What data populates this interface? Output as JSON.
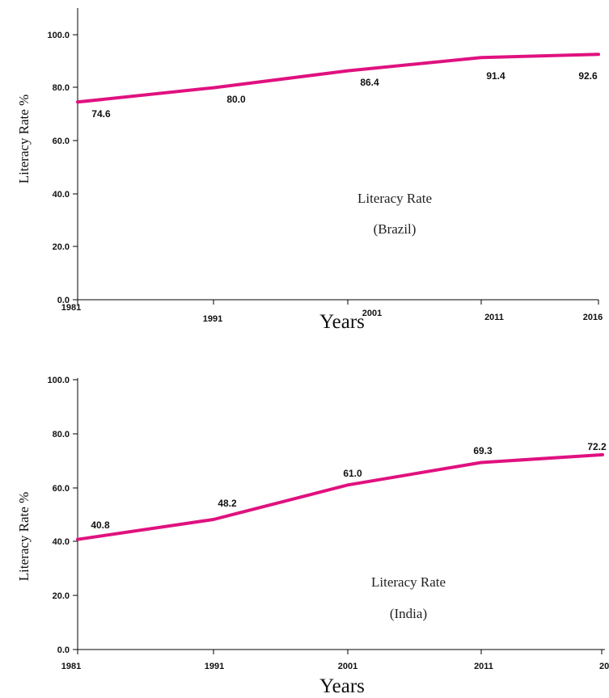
{
  "colors": {
    "line": "#e0117f",
    "axis": "#000000"
  },
  "chart_data": [
    {
      "type": "line",
      "title": "",
      "xlabel": "Years",
      "ylabel": "Literacy Rate  %",
      "ylim": [
        0,
        100
      ],
      "yticks": [
        "0.0",
        "20.0",
        "40.0",
        "60.0",
        "80.0",
        "100.0"
      ],
      "x": [
        "1981",
        "1991",
        "2001",
        "2011",
        "2016"
      ],
      "series": [
        {
          "values": [
            74.6,
            80.0,
            86.4,
            91.4,
            92.6
          ],
          "labels": [
            "74.6",
            "80.0",
            "86.4",
            "91.4",
            "92.6"
          ]
        }
      ],
      "annotation": {
        "line1": "Literacy Rate",
        "line2": "(Brazil)"
      },
      "grid": false
    },
    {
      "type": "line",
      "title": "",
      "xlabel": "Years",
      "ylabel": "Literacy Rate  %",
      "ylim": [
        0,
        100
      ],
      "yticks": [
        "0.0",
        "20.0",
        "40.0",
        "60.0",
        "80.0",
        "100.0"
      ],
      "x": [
        "1981",
        "1991",
        "2001",
        "2011",
        "20"
      ],
      "series": [
        {
          "values": [
            40.8,
            48.2,
            61.0,
            69.3,
            72.2
          ],
          "labels": [
            "40.8",
            "48.2",
            "61.0",
            "69.3",
            "72.2"
          ]
        }
      ],
      "annotation": {
        "line1": "Literacy Rate",
        "line2": "(India)"
      },
      "grid": false
    }
  ]
}
